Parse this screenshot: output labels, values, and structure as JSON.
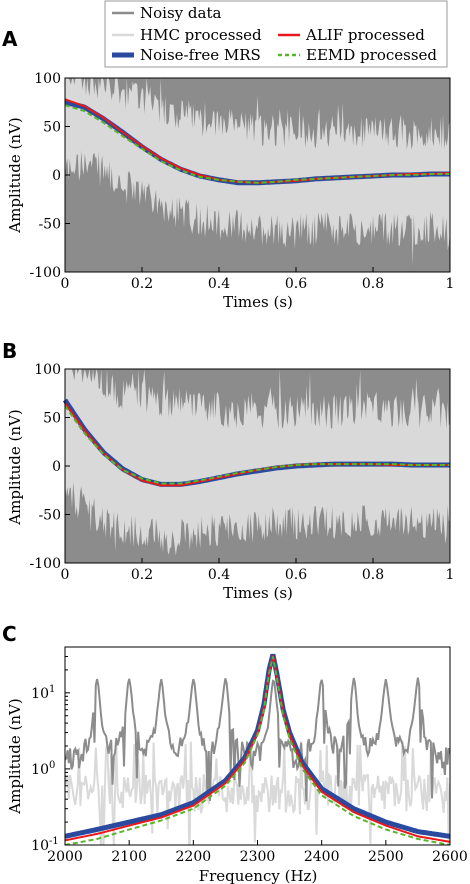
{
  "legend": {
    "entries": [
      {
        "label": "Noisy data",
        "color": "#8c8c8c",
        "style": "line"
      },
      {
        "label": "HMC processed",
        "color": "#d9d9d9",
        "style": "line"
      },
      {
        "label": "Noise-free MRS",
        "color": "#2a4aa0",
        "style": "thick"
      },
      {
        "label": "ALIF processed",
        "color": "#e8191a",
        "style": "line"
      },
      {
        "label": "EEMD processed",
        "color": "#59b52b",
        "style": "dashed"
      }
    ]
  },
  "colors": {
    "noisy": "#8c8c8c",
    "hmc": "#d9d9d9",
    "noise_free": "#2a4aa0",
    "alif": "#e8191a",
    "eemd": "#59b52b"
  },
  "chart_data": [
    {
      "panel": "A",
      "type": "line",
      "xlabel": "Times (s)",
      "ylabel": "Amplitude (nV)",
      "xlim": [
        0,
        1
      ],
      "ylim": [
        -100,
        100
      ],
      "xticks": [
        "0",
        "0.2",
        "0.4",
        "0.6",
        "0.8",
        "1"
      ],
      "yticks": [
        "-100",
        "-50",
        "0",
        "50",
        "100"
      ],
      "x": [
        0,
        0.05,
        0.1,
        0.15,
        0.2,
        0.25,
        0.3,
        0.35,
        0.4,
        0.45,
        0.5,
        0.55,
        0.6,
        0.65,
        0.7,
        0.75,
        0.8,
        0.85,
        0.9,
        0.95,
        1.0
      ],
      "series": [
        {
          "name": "Noise-free MRS",
          "values": [
            75,
            70,
            58,
            44,
            29,
            16,
            6,
            -1,
            -5,
            -8,
            -8,
            -7,
            -6,
            -4,
            -3,
            -2,
            -1,
            0,
            0,
            1,
            1
          ]
        },
        {
          "name": "ALIF processed",
          "values": [
            78,
            71,
            59,
            44,
            30,
            17,
            7,
            0,
            -5,
            -7,
            -8,
            -7,
            -6,
            -4,
            -3,
            -2,
            -1,
            0,
            1,
            1,
            2
          ]
        },
        {
          "name": "EEMD processed",
          "values": [
            72,
            66,
            54,
            40,
            27,
            14,
            5,
            -2,
            -5,
            -7,
            -8,
            -7,
            -5,
            -4,
            -3,
            -2,
            -1,
            0,
            0,
            1,
            1
          ]
        }
      ],
      "noisy_band": {
        "upper": [
          110,
          100,
          95,
          85,
          78,
          70,
          62,
          58,
          52,
          50,
          48,
          46,
          45,
          45,
          44,
          44,
          43,
          43,
          43,
          42,
          42
        ],
        "lower": [
          5,
          10,
          5,
          -10,
          -20,
          -30,
          -40,
          -45,
          -50,
          -52,
          -55,
          -55,
          -55,
          -55,
          -55,
          -55,
          -55,
          -55,
          -55,
          -55,
          -55
        ]
      }
    },
    {
      "panel": "B",
      "type": "line",
      "xlabel": "Times (s)",
      "ylabel": "Amplitude (nV)",
      "xlim": [
        0,
        1
      ],
      "ylim": [
        -100,
        100
      ],
      "xticks": [
        "0",
        "0.2",
        "0.4",
        "0.6",
        "0.8",
        "1"
      ],
      "yticks": [
        "-100",
        "-50",
        "0",
        "50",
        "100"
      ],
      "x": [
        0,
        0.05,
        0.1,
        0.15,
        0.2,
        0.25,
        0.3,
        0.35,
        0.4,
        0.45,
        0.5,
        0.55,
        0.6,
        0.65,
        0.7,
        0.75,
        0.8,
        0.85,
        0.9,
        0.95,
        1.0
      ],
      "series": [
        {
          "name": "Noise-free MRS",
          "values": [
            68,
            38,
            14,
            -3,
            -14,
            -19,
            -19,
            -16,
            -12,
            -8,
            -5,
            -2,
            0,
            1,
            2,
            2,
            2,
            2,
            1,
            1,
            1
          ]
        },
        {
          "name": "ALIF processed",
          "values": [
            65,
            37,
            13,
            -4,
            -15,
            -20,
            -20,
            -16,
            -12,
            -8,
            -4,
            -1,
            1,
            2,
            2,
            2,
            2,
            1,
            1,
            1,
            1
          ]
        },
        {
          "name": "EEMD processed",
          "values": [
            62,
            34,
            12,
            -4,
            -13,
            -18,
            -18,
            -15,
            -11,
            -7,
            -4,
            -1,
            1,
            2,
            2,
            2,
            2,
            2,
            1,
            1,
            1
          ]
        }
      ],
      "noisy_band": {
        "upper": [
          110,
          100,
          85,
          75,
          72,
          68,
          65,
          60,
          58,
          56,
          56,
          56,
          56,
          56,
          56,
          56,
          56,
          56,
          56,
          56,
          56
        ],
        "lower": [
          -30,
          -40,
          -55,
          -65,
          -70,
          -72,
          -72,
          -70,
          -65,
          -62,
          -60,
          -58,
          -58,
          -58,
          -58,
          -58,
          -58,
          -58,
          -58,
          -58,
          -58
        ]
      }
    },
    {
      "panel": "C",
      "type": "line",
      "xlabel": "Frequency (Hz)",
      "ylabel": "Amplitude (nV)",
      "xlim": [
        2000,
        2600
      ],
      "ylim": [
        0.1,
        40
      ],
      "yscale": "log",
      "xticks": [
        "2000",
        "2100",
        "2200",
        "2300",
        "2400",
        "2500",
        "2600"
      ],
      "yticks": [
        {
          "value": 0.1,
          "label": "10",
          "sup": "-1"
        },
        {
          "value": 1,
          "label": "10",
          "sup": "0"
        },
        {
          "value": 10,
          "label": "10",
          "sup": "1"
        }
      ],
      "x": [
        2000,
        2050,
        2100,
        2150,
        2200,
        2250,
        2280,
        2300,
        2310,
        2318,
        2324,
        2330,
        2340,
        2350,
        2370,
        2400,
        2450,
        2500,
        2550,
        2600
      ],
      "series": [
        {
          "name": "Noise-free MRS",
          "values": [
            0.13,
            0.16,
            0.2,
            0.25,
            0.36,
            0.7,
            1.4,
            3.2,
            7,
            20,
            32,
            18,
            6,
            3,
            1.2,
            0.55,
            0.3,
            0.2,
            0.15,
            0.13
          ]
        },
        {
          "name": "ALIF processed",
          "values": [
            0.115,
            0.14,
            0.18,
            0.23,
            0.33,
            0.65,
            1.3,
            3,
            6.5,
            19,
            31,
            17,
            5.5,
            2.8,
            1.1,
            0.5,
            0.27,
            0.18,
            0.13,
            0.11
          ]
        },
        {
          "name": "EEMD processed",
          "values": [
            0.1,
            0.12,
            0.16,
            0.21,
            0.3,
            0.6,
            1.2,
            2.8,
            6,
            18,
            30,
            16,
            5,
            2.5,
            1,
            0.45,
            0.24,
            0.16,
            0.12,
            0.1
          ]
        }
      ],
      "noisy_peaks_hz": [
        2050,
        2100,
        2150,
        2200,
        2250,
        2325,
        2400,
        2450,
        2500,
        2550
      ]
    }
  ]
}
